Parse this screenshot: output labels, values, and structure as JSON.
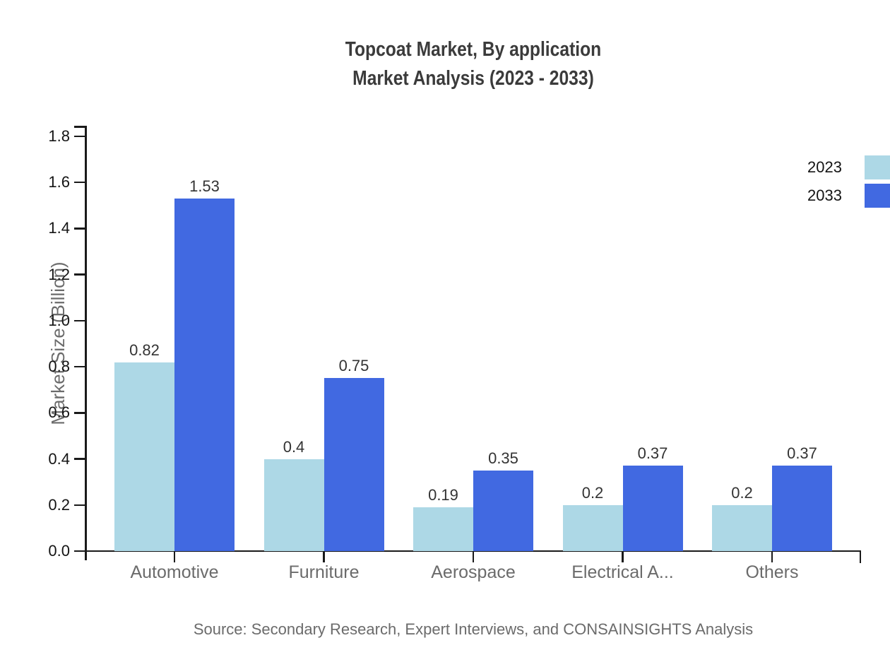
{
  "title": {
    "line1": "Topcoat Market, By application",
    "line2": "Market Analysis (2023 - 2033)"
  },
  "source": "Source: Secondary Research, Expert Interviews, and CONSAINSIGHTS Analysis",
  "chart_data": {
    "type": "bar",
    "title": "Topcoat Market, By application Market Analysis (2023 - 2033)",
    "categories": [
      "Automotive",
      "Furniture",
      "Aerospace",
      "Electrical A...",
      "Others"
    ],
    "series": [
      {
        "name": "2023",
        "color": "#ADD8E6",
        "values": [
          0.82,
          0.4,
          0.19,
          0.2,
          0.2
        ],
        "labels": [
          "0.82",
          "0.4",
          "0.19",
          "0.2",
          "0.2"
        ]
      },
      {
        "name": "2033",
        "color": "#4169E1",
        "values": [
          1.53,
          0.75,
          0.35,
          0.37,
          0.37
        ],
        "labels": [
          "1.53",
          "0.75",
          "0.35",
          "0.37",
          "0.37"
        ]
      }
    ],
    "xlabel": "",
    "ylabel": "Market Size (Billion)",
    "ylim": [
      0,
      1.8
    ],
    "yticks": [
      0.0,
      0.2,
      0.4,
      0.6,
      0.8,
      1.0,
      1.2,
      1.4,
      1.6,
      1.8
    ],
    "ytick_labels": [
      "0.0",
      "0.2",
      "0.4",
      "0.6",
      "0.8",
      "1.0",
      "1.2",
      "1.4",
      "1.6",
      "1.8"
    ],
    "grid": false,
    "legend_position": "top-right",
    "bar_value_labels": true
  },
  "colors": {
    "axis": "#1a1a1a",
    "title_text": "#3b3b3b",
    "muted_text": "#6b6b6b",
    "value_label_text": "#333333",
    "series_2023": "#ADD8E6",
    "series_2033": "#4169E1"
  }
}
